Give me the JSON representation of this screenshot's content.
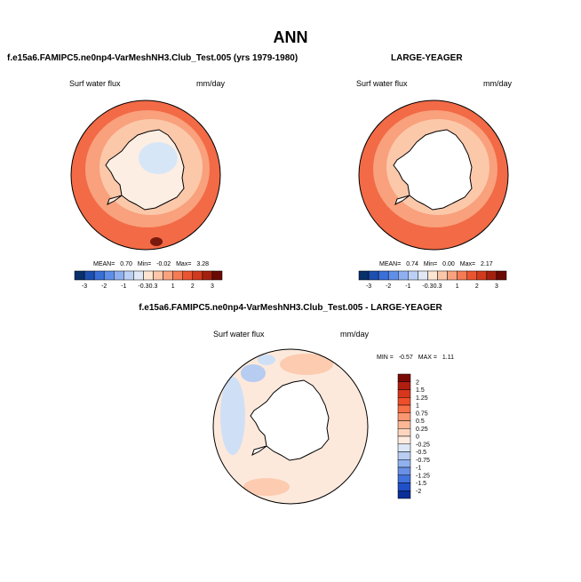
{
  "title": "ANN",
  "panels": [
    {
      "title": "f.e15a6.FAMIPC5.ne0np4-VarMeshNH3.Club_Test.005 (yrs 1979-1980)",
      "variable": "Surf water flux",
      "units": "mm/day",
      "stats": {
        "mean_label": "MEAN=",
        "mean": "0.70",
        "min_label": "Min=",
        "min": "-0.02",
        "max_label": "Max=",
        "max": "3.28"
      }
    },
    {
      "title": "LARGE-YEAGER",
      "variable": "Surf water flux",
      "units": "mm/day",
      "stats": {
        "mean_label": "MEAN=",
        "mean": "0.74",
        "min_label": "Min=",
        "min": "0.00",
        "max_label": "Max=",
        "max": "2.17"
      }
    },
    {
      "title": "f.e15a6.FAMIPC5.ne0np4-VarMeshNH3.Club_Test.005 - LARGE-YEAGER",
      "variable": "Surf water flux",
      "units": "mm/day",
      "stats": {
        "min_label": "MIN =",
        "min": "-0.57",
        "max_label": "MAX =",
        "max": "1.11"
      }
    }
  ],
  "colorbar_top": {
    "labels": [
      "-3",
      "-2",
      "-1",
      "-0.3",
      "0.3",
      "1",
      "2",
      "3"
    ],
    "colors": [
      "#08306b",
      "#1c4fb0",
      "#3a6fd8",
      "#5f8fe8",
      "#8fb0f0",
      "#bcd0f5",
      "#e0e8f5",
      "#fde5d2",
      "#fcc6a8",
      "#f9a27e",
      "#f57b55",
      "#ea5430",
      "#d13a1e",
      "#a3200f",
      "#6b0a05"
    ]
  },
  "colorbar_diff": {
    "labels": [
      "2",
      "1.5",
      "1.25",
      "1",
      "0.75",
      "0.5",
      "0.25",
      "0",
      "-0.25",
      "-0.5",
      "-0.75",
      "-1",
      "-1.25",
      "-1.5",
      "-2"
    ],
    "colors": [
      "#7a0a06",
      "#b01e10",
      "#d6361c",
      "#ee4e2a",
      "#f77048",
      "#fa9670",
      "#fcb796",
      "#fdd5bf",
      "#fdebe0",
      "#dbe7f7",
      "#b9cdf2",
      "#90b1ee",
      "#6990e6",
      "#4171dc",
      "#2050c8",
      "#0a2f98"
    ]
  },
  "map_colors": {
    "panel1": {
      "ocean_outer": "#f26a46",
      "ring": "#f9a07c",
      "ring_inner": "#fcc8aa",
      "coast": "#fde3d0",
      "land": "#fdeee3",
      "inland": "#d7e6f7",
      "dark_spot": "#7a1a0e"
    },
    "panel2": {
      "ocean_outer": "#f26a46",
      "ring": "#f9a07c",
      "ring_inner": "#fcc8aa",
      "coast": "#fde3d0",
      "land": "#ffffff"
    },
    "panel3": {
      "ocean": "#fde9dc",
      "patch": "#fccbb0",
      "blue": "#cfe0f6",
      "blue2": "#b6ccf1",
      "land": "#ffffff"
    }
  }
}
